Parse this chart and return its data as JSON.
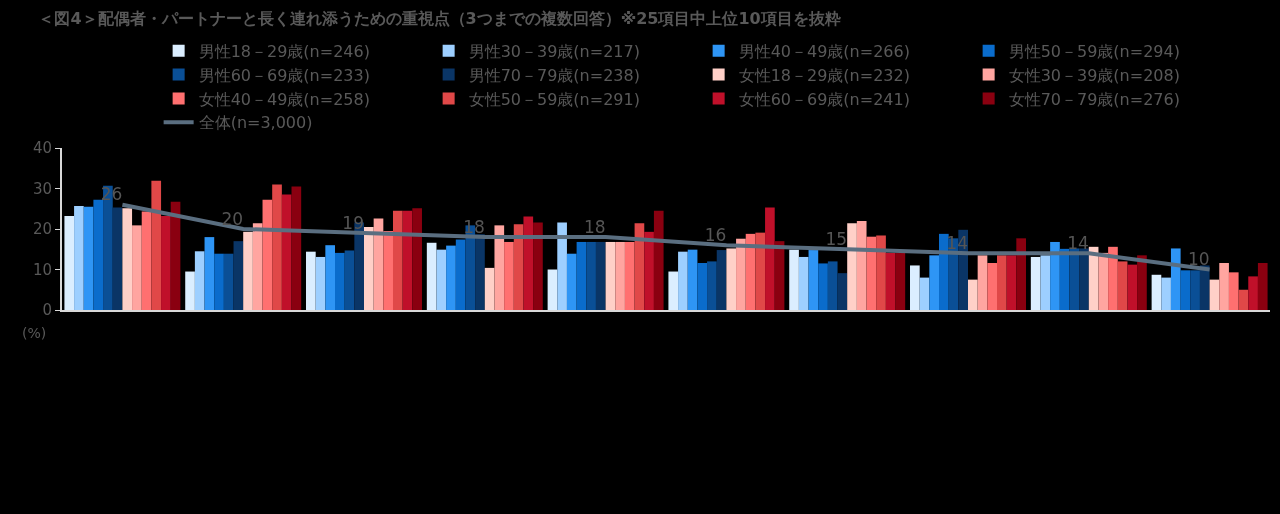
{
  "chart_data": {
    "type": "bar",
    "title": "＜図4＞配偶者・パートナーと長く連れ添うための重視点（3つまでの複数回答）※25項目中上位10項目を抜粋",
    "ylabel": "(%)",
    "categories": [
      null,
      null,
      null,
      null,
      null,
      null,
      null,
      null,
      null,
      null
    ],
    "series": [
      {
        "name": "男性18－29歳(n=246)",
        "color": "#dbeeff",
        "values": [
          23.2,
          9.5,
          14.4,
          16.6,
          10,
          9.5,
          14.9,
          11,
          13.1,
          8.7
        ]
      },
      {
        "name": "男性30－39歳(n=217)",
        "color": "#9dcfff",
        "values": [
          25.7,
          14.5,
          13.1,
          14.9,
          21.6,
          14.4,
          13.1,
          8,
          13.5,
          8
        ]
      },
      {
        "name": "男性40－49歳(n=266)",
        "color": "#2e95f5",
        "values": [
          25.5,
          18,
          16,
          15.9,
          13.9,
          14.9,
          14.8,
          13.5,
          16.8,
          15.2
        ]
      },
      {
        "name": "男性50－59歳(n=294)",
        "color": "#0a6ccc",
        "values": [
          27.2,
          13.9,
          14.1,
          17.4,
          16.8,
          11.6,
          11.5,
          18.8,
          15.1,
          9.8
        ]
      },
      {
        "name": "男性60－69歳(n=233)",
        "color": "#0a4f96",
        "values": [
          30.7,
          13.9,
          14.7,
          20.9,
          16.8,
          12,
          12,
          17.7,
          15.2,
          9.8
        ]
      },
      {
        "name": "男性70－79歳(n=238)",
        "color": "#0a3566",
        "values": [
          25.3,
          17,
          21.6,
          18.7,
          16.8,
          14.8,
          9.1,
          19.8,
          15.2,
          11
        ]
      },
      {
        "name": "女性18－29歳(n=232)",
        "color": "#ffd0c8",
        "values": [
          25.1,
          19.3,
          20.5,
          10.4,
          16.8,
          15.2,
          21.4,
          7.5,
          15.6,
          7.5
        ]
      },
      {
        "name": "女性30－39歳(n=208)",
        "color": "#ffa5a0",
        "values": [
          20.9,
          21.4,
          22.6,
          20.9,
          16.8,
          17.6,
          22,
          13.5,
          14.1,
          11.6
        ]
      },
      {
        "name": "女性40－49歳(n=258)",
        "color": "#ff7070",
        "values": [
          24.3,
          27.2,
          19.5,
          16.8,
          16.8,
          18.8,
          18.1,
          11.6,
          15.6,
          9.3
        ]
      },
      {
        "name": "女性50－59歳(n=291)",
        "color": "#e04848",
        "values": [
          31.9,
          31,
          24.5,
          21.2,
          21.4,
          19.1,
          18.4,
          13.5,
          12,
          5
        ]
      },
      {
        "name": "女性60－69歳(n=241)",
        "color": "#c0102a",
        "values": [
          23.2,
          28.5,
          24.5,
          23.1,
          19.3,
          25.3,
          14.1,
          13.5,
          11.2,
          8.3
        ]
      },
      {
        "name": "女性70－79歳(n=276)",
        "color": "#8a0010",
        "values": [
          26.7,
          30.5,
          25.1,
          21.6,
          24.5,
          17,
          14.1,
          17.7,
          13.5,
          11.6
        ]
      },
      {
        "name": "全体(n=3,000)",
        "type": "line",
        "color": "#5a6e80",
        "values": [
          26,
          20,
          19,
          18,
          18,
          16,
          15,
          14,
          14,
          10
        ],
        "value_labels": [
          "26",
          "20",
          "19",
          "18",
          "18",
          "16",
          "15",
          "14",
          "14",
          "10"
        ]
      }
    ],
    "ylim": [
      0,
      40
    ],
    "yticks": [
      0,
      10,
      20,
      30,
      40
    ],
    "tick_labels": "y",
    "grid": false,
    "legend": "top",
    "marker": "none"
  }
}
